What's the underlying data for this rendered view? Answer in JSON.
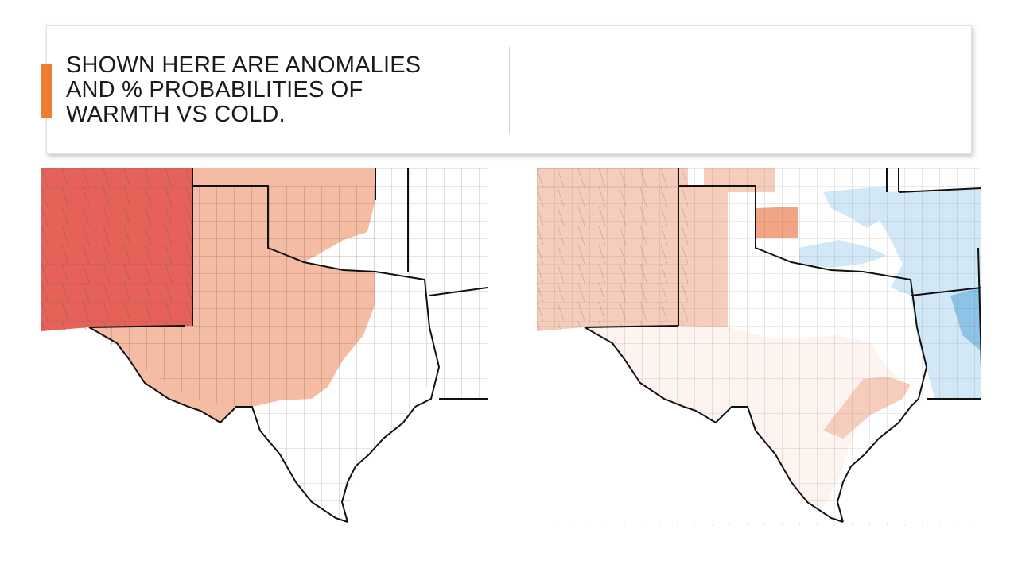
{
  "slide": {
    "title": "SHOWN HERE ARE ANOMALIES\nAND % PROBABILITIES OF\nWARMTH VS COLD.",
    "accent_color": "#ED7D31"
  },
  "maps": {
    "left": {
      "name": "anomalies",
      "colors": {
        "strong_warm": "#E66158",
        "warm": "#F4BCA2",
        "neutral": "#FFFFFF"
      }
    },
    "right": {
      "name": "probabilities",
      "colors": {
        "warm": "#F6CDBA",
        "warm_mid": "#F2A584",
        "faint_warm": "#FDF3EF",
        "cold": "#D3E8F7",
        "cold_strong": "#8EC3E8",
        "neutral": "#FFFFFF"
      }
    }
  }
}
